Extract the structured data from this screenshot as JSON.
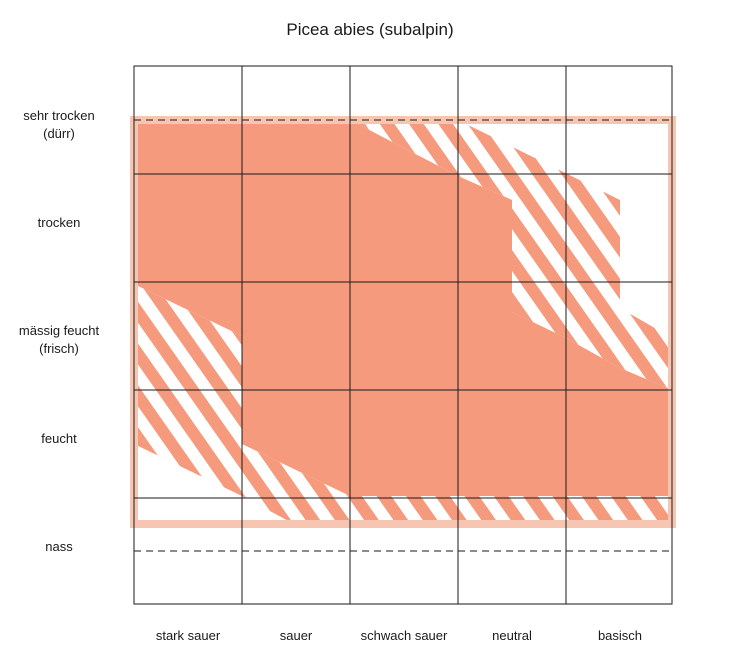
{
  "title": "Picea abies (subalpin)",
  "moisture_labels": [
    {
      "line1": "sehr trocken",
      "line2": "(dürr)"
    },
    {
      "line1": "trocken",
      "line2": ""
    },
    {
      "line1": "mässig feucht",
      "line2": "(frisch)"
    },
    {
      "line1": "feucht",
      "line2": ""
    },
    {
      "line1": "nass",
      "line2": ""
    }
  ],
  "acidity_labels": [
    "stark sauer",
    "sauer",
    "schwach sauer",
    "neutral",
    "basisch"
  ],
  "colors": {
    "fill": "#f59a7c",
    "frame": "#f7c6b3",
    "grid": "#1a1a1a"
  }
}
